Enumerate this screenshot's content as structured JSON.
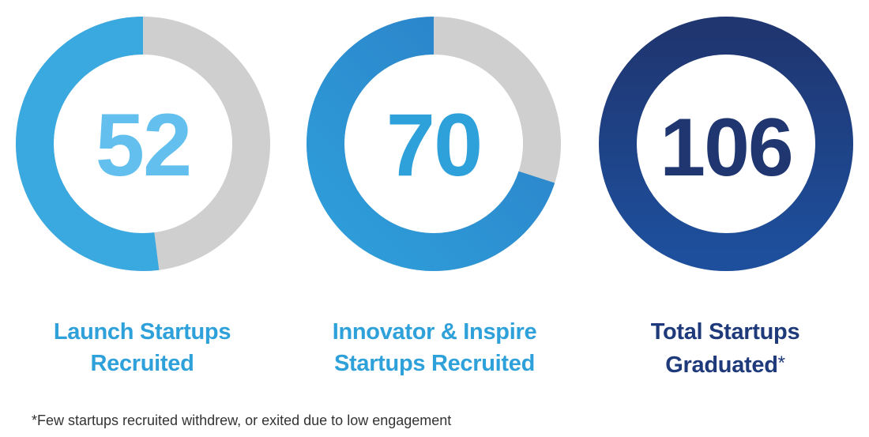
{
  "chart_data": [
    {
      "type": "donut",
      "value": "52",
      "filled_fraction": 0.52,
      "label_lines": [
        "Launch Startups",
        "Recruited"
      ],
      "label_suffix": "",
      "colors": {
        "fill_start": "#3aa9e0",
        "fill_end": "#3aa9e0",
        "track": "#cfcfcf",
        "number": "#63c0ee"
      }
    },
    {
      "type": "donut",
      "value": "70",
      "filled_fraction": 0.7,
      "label_lines": [
        "Innovator & Inspire",
        "Startups Recruited"
      ],
      "label_suffix": "",
      "colors": {
        "fill_start": "#2f9fdb",
        "fill_end": "#2a7fc6",
        "track": "#cfcfcf",
        "number": "#2ea0da"
      }
    },
    {
      "type": "donut",
      "value": "106",
      "filled_fraction": 1.0,
      "label_lines": [
        "Total Startups",
        "Graduated"
      ],
      "label_suffix": "*",
      "colors": {
        "fill_start": "#1e4f9c",
        "fill_end": "#1f3671",
        "track": "#cfcfcf",
        "number": "#1f3671"
      }
    }
  ],
  "footnote": "*Few startups recruited withdrew, or exited due to low engagement"
}
